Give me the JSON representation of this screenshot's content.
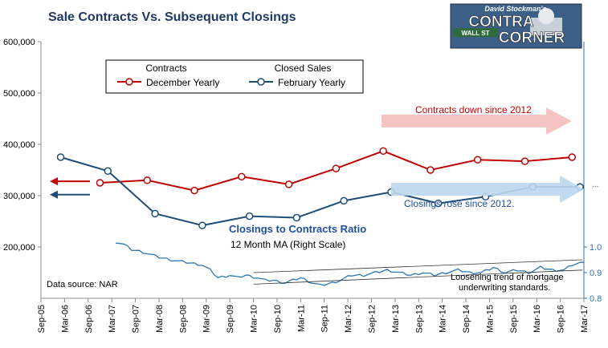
{
  "chart_data": {
    "type": "line",
    "title": "Sale Contracts Vs. Subsequent Closings",
    "logo": {
      "top_text": "David Stockman's",
      "line1": "CONTRA",
      "line2": "CORNER",
      "sign_text": "WALL ST"
    },
    "source": "Data source: NAR",
    "x_ticks": [
      "Sep-05",
      "Mar-06",
      "Sep-06",
      "Mar-07",
      "Sep-07",
      "Mar-08",
      "Sep-08",
      "Mar-09",
      "Sep-09",
      "Mar-10",
      "Sep-10",
      "Mar-11",
      "Sep-11",
      "Mar-12",
      "Sep-12",
      "Mar-13",
      "Sep-13",
      "Mar-14",
      "Sep-14",
      "Mar-15",
      "Sep-15",
      "Mar-16",
      "Sep-16",
      "Mar-17"
    ],
    "left_axis": {
      "ylim": [
        100000,
        600000
      ],
      "ticks": [
        "600,000",
        "500,000",
        "400,000",
        "300,000",
        "200,000"
      ],
      "tick_values": [
        600000,
        500000,
        400000,
        300000,
        200000
      ]
    },
    "right_axis": {
      "ylim": [
        0.8,
        1.8
      ],
      "ticks": [
        "1.0",
        "0.9",
        "0.8"
      ],
      "tick_values": [
        1.0,
        0.9,
        0.8
      ]
    },
    "legend": {
      "placement": "top-left",
      "headers": [
        "Contracts",
        "Closed Sales"
      ],
      "entries": [
        "December Yearly",
        "February Yearly"
      ]
    },
    "series": [
      {
        "name": "December Yearly",
        "axis": "left",
        "color": "#c00000",
        "marker": "circle",
        "x": [
          "Dec-06",
          "Dec-07",
          "Dec-08",
          "Dec-09",
          "Dec-10",
          "Dec-11",
          "Dec-12",
          "Dec-13",
          "Dec-14",
          "Dec-15",
          "Dec-16"
        ],
        "values": [
          325000,
          330000,
          310000,
          337000,
          322000,
          353000,
          387000,
          350000,
          370000,
          367000,
          375000
        ]
      },
      {
        "name": "February Yearly",
        "axis": "left",
        "color": "#1f4e79",
        "marker": "circle",
        "x": [
          "Feb-06",
          "Feb-07",
          "Feb-08",
          "Feb-09",
          "Feb-10",
          "Feb-11",
          "Feb-12",
          "Feb-13",
          "Feb-14",
          "Feb-15",
          "Feb-16",
          "Feb-17"
        ],
        "values": [
          375000,
          348000,
          265000,
          242000,
          260000,
          257000,
          290000,
          307000,
          285000,
          298000,
          317000,
          317000
        ]
      },
      {
        "name": "12 Month MA (Right Scale)",
        "axis": "right",
        "color": "#2e75b6",
        "x_start": "Apr-07",
        "x_end": "Mar-17",
        "knots": [
          [
            0,
            1.02
          ],
          [
            2,
            1.01
          ],
          [
            4,
            0.99
          ],
          [
            7,
            0.98
          ],
          [
            11,
            0.96
          ],
          [
            14,
            0.95
          ],
          [
            18,
            0.94
          ],
          [
            22,
            0.93
          ],
          [
            24,
            0.91
          ],
          [
            26,
            0.88
          ],
          [
            29,
            0.89
          ],
          [
            31,
            0.88
          ],
          [
            33,
            0.89
          ],
          [
            36,
            0.88
          ],
          [
            38,
            0.87
          ],
          [
            40,
            0.87
          ],
          [
            43,
            0.86
          ],
          [
            45,
            0.87
          ],
          [
            47,
            0.88
          ],
          [
            50,
            0.86
          ],
          [
            52,
            0.85
          ],
          [
            55,
            0.86
          ],
          [
            57,
            0.87
          ],
          [
            60,
            0.89
          ],
          [
            63,
            0.89
          ],
          [
            66,
            0.9
          ],
          [
            69,
            0.91
          ],
          [
            72,
            0.9
          ],
          [
            75,
            0.89
          ],
          [
            78,
            0.9
          ],
          [
            81,
            0.89
          ],
          [
            84,
            0.9
          ],
          [
            87,
            0.91
          ],
          [
            90,
            0.9
          ],
          [
            93,
            0.9
          ],
          [
            96,
            0.92
          ],
          [
            99,
            0.9
          ],
          [
            102,
            0.91
          ],
          [
            105,
            0.9
          ],
          [
            108,
            0.92
          ],
          [
            111,
            0.91
          ],
          [
            114,
            0.91
          ],
          [
            116,
            0.93
          ],
          [
            119,
            0.94
          ]
        ]
      }
    ],
    "annotations": {
      "contracts_trend": "Contracts down since 2012",
      "closings_trend": "Closings rose since 2012.",
      "ratio_title": "Closings to Contracts Ratio",
      "ratio_subtitle": "12 Month MA (Right Scale)",
      "loosening": [
        "Loosening trend of mortgage",
        "underwriting standards."
      ],
      "right_edge_mark": "..."
    },
    "colors": {
      "contracts": "#c00000",
      "closings": "#1f4e79",
      "ratio": "#2e75b6",
      "title": "#1f3864",
      "ratio_title": "#1f4e9d",
      "axis": "#8c8c8c"
    }
  }
}
